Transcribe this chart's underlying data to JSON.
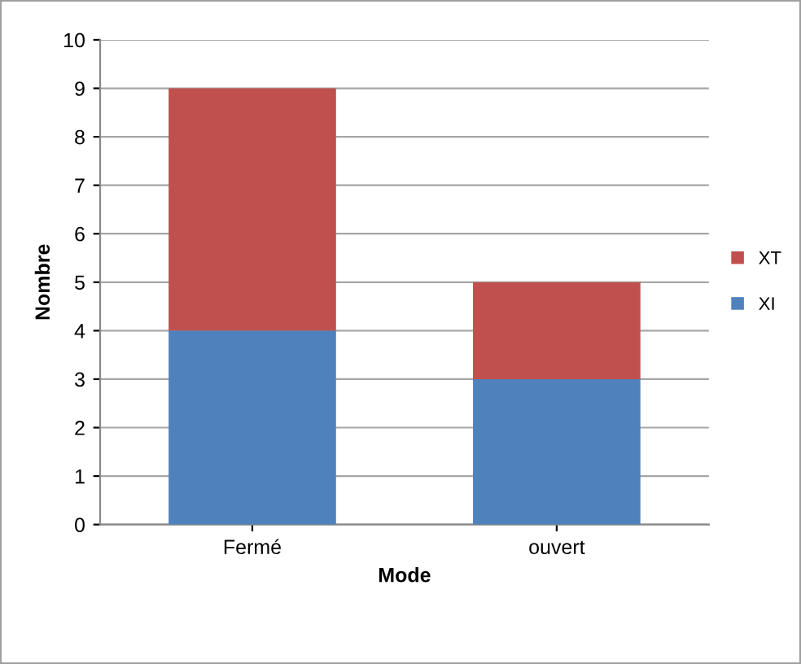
{
  "chart_data": {
    "type": "bar",
    "stacked": true,
    "xlabel": "Mode",
    "ylabel": "Nombre",
    "categories": [
      "Fermé",
      "ouvert"
    ],
    "series": [
      {
        "name": "XI",
        "color": "#4f81bd",
        "values": [
          4,
          3
        ]
      },
      {
        "name": "XT",
        "color": "#c0504d",
        "values": [
          5,
          2
        ]
      }
    ],
    "ylim": [
      0,
      10
    ],
    "yticks": [
      0,
      1,
      2,
      3,
      4,
      5,
      6,
      7,
      8,
      9,
      10
    ],
    "grid": "y",
    "legend": "right"
  }
}
